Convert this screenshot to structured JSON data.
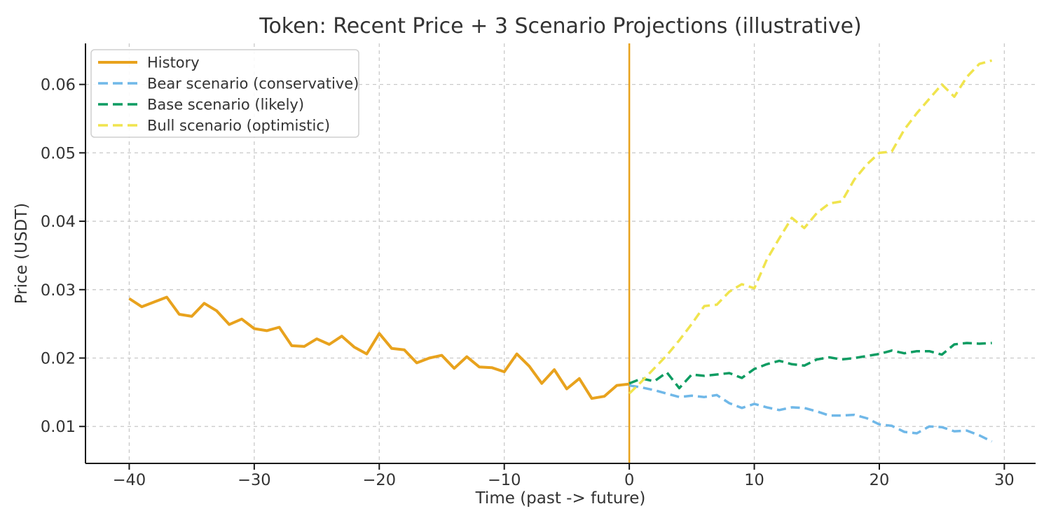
{
  "chart_data": {
    "type": "line",
    "title": "Token: Recent Price + 3 Scenario Projections (illustrative)",
    "xlabel": "Time (past -> future)",
    "ylabel": "Price (USDT)",
    "xlim": [
      -43.5,
      32.5
    ],
    "ylim": [
      0.0046,
      0.066
    ],
    "grid": true,
    "legend_position": "upper left",
    "x_ticks": {
      "values": [
        -40,
        -30,
        -20,
        -10,
        0,
        10,
        20,
        30
      ],
      "labels": [
        "−40",
        "−30",
        "−20",
        "−10",
        "0",
        "10",
        "20",
        "30"
      ]
    },
    "y_ticks": {
      "values": [
        0.01,
        0.02,
        0.03,
        0.04,
        0.05,
        0.06
      ],
      "labels": [
        "0.01",
        "0.02",
        "0.03",
        "0.04",
        "0.05",
        "0.06"
      ]
    },
    "vline": {
      "x": 0,
      "color": "#E8A21D"
    },
    "series": [
      {
        "name": "History",
        "color": "#E8A21D",
        "style": "solid",
        "x": [
          -40,
          -39,
          -38,
          -37,
          -36,
          -35,
          -34,
          -33,
          -32,
          -31,
          -30,
          -29,
          -28,
          -27,
          -26,
          -25,
          -24,
          -23,
          -22,
          -21,
          -20,
          -19,
          -18,
          -17,
          -16,
          -15,
          -14,
          -13,
          -12,
          -11,
          -10,
          -9,
          -8,
          -7,
          -6,
          -5,
          -4,
          -3,
          -2,
          -1,
          0
        ],
        "values": [
          0.0287,
          0.0275,
          0.0282,
          0.0289,
          0.0264,
          0.0261,
          0.028,
          0.0269,
          0.0249,
          0.0257,
          0.0243,
          0.024,
          0.0245,
          0.0218,
          0.0217,
          0.0228,
          0.022,
          0.0232,
          0.0216,
          0.0206,
          0.0236,
          0.0214,
          0.0212,
          0.0193,
          0.02,
          0.0204,
          0.0185,
          0.0202,
          0.0187,
          0.0186,
          0.018,
          0.0206,
          0.0188,
          0.0163,
          0.0183,
          0.0155,
          0.017,
          0.0141,
          0.0144,
          0.016,
          0.0162
        ]
      },
      {
        "name": "Bear scenario (conservative)",
        "color": "#70B8E8",
        "style": "dashed",
        "x": [
          0,
          1,
          2,
          3,
          4,
          5,
          6,
          7,
          8,
          9,
          10,
          11,
          12,
          13,
          14,
          15,
          16,
          17,
          18,
          19,
          20,
          21,
          22,
          23,
          24,
          25,
          26,
          27,
          28,
          29
        ],
        "values": [
          0.016,
          0.0157,
          0.0153,
          0.0148,
          0.0143,
          0.0145,
          0.0143,
          0.0146,
          0.0134,
          0.0127,
          0.0133,
          0.0128,
          0.0124,
          0.0128,
          0.0127,
          0.0122,
          0.0116,
          0.0116,
          0.0117,
          0.0112,
          0.0103,
          0.0101,
          0.0092,
          0.009,
          0.01,
          0.0099,
          0.0093,
          0.0094,
          0.0087,
          0.0078
        ]
      },
      {
        "name": "Base scenario (likely)",
        "color": "#0D9C62",
        "style": "dashed",
        "x": [
          0,
          1,
          2,
          3,
          4,
          5,
          6,
          7,
          8,
          9,
          10,
          11,
          12,
          13,
          14,
          15,
          16,
          17,
          18,
          19,
          20,
          21,
          22,
          23,
          24,
          25,
          26,
          27,
          28,
          29
        ],
        "values": [
          0.0163,
          0.017,
          0.0166,
          0.0179,
          0.0156,
          0.0176,
          0.0174,
          0.0176,
          0.0178,
          0.0171,
          0.0184,
          0.0191,
          0.0196,
          0.0191,
          0.0189,
          0.0198,
          0.0201,
          0.0198,
          0.02,
          0.0203,
          0.0206,
          0.0211,
          0.0207,
          0.021,
          0.021,
          0.0205,
          0.022,
          0.0222,
          0.0221,
          0.0222
        ]
      },
      {
        "name": "Bull scenario (optimistic)",
        "color": "#F0E44E",
        "style": "dashed",
        "x": [
          0,
          1,
          2,
          3,
          4,
          5,
          6,
          7,
          8,
          9,
          10,
          11,
          12,
          13,
          14,
          15,
          16,
          17,
          18,
          19,
          20,
          21,
          22,
          23,
          24,
          25,
          26,
          27,
          28,
          29
        ],
        "values": [
          0.0148,
          0.0166,
          0.0185,
          0.0204,
          0.0226,
          0.025,
          0.0276,
          0.0278,
          0.0297,
          0.0308,
          0.0302,
          0.0344,
          0.0375,
          0.0405,
          0.039,
          0.0412,
          0.0426,
          0.0429,
          0.0461,
          0.0483,
          0.05,
          0.0502,
          0.0534,
          0.0558,
          0.0579,
          0.06,
          0.0582,
          0.0611,
          0.063,
          0.0635
        ]
      }
    ],
    "style": {
      "grid_color": "#c9c9c9",
      "spine_color": "#1a1a1a",
      "text_color": "#333333",
      "legend_border": "#cfcfcf",
      "background": "#ffffff"
    }
  }
}
